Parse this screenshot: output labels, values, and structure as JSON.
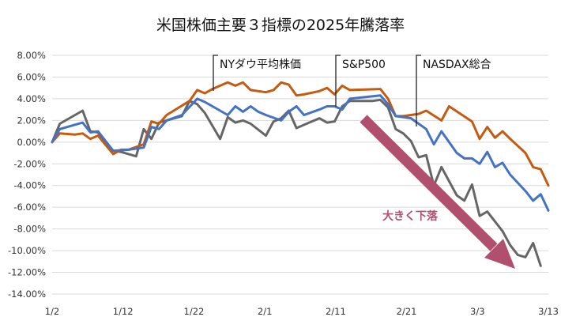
{
  "chart_data": {
    "type": "line",
    "title": "米国株価主要３指標の2025年騰落率",
    "x_tick_labels": [
      "1/2",
      "1/12",
      "1/22",
      "2/1",
      "2/11",
      "2/21",
      "3/3",
      "3/13"
    ],
    "ylim": [
      -14,
      8
    ],
    "y_ticks": [
      8,
      6,
      4,
      2,
      0,
      -2,
      -4,
      -6,
      -8,
      -10,
      -12,
      -14
    ],
    "y_tick_labels": [
      "8.00%",
      "6.00%",
      "4.00%",
      "2.00%",
      "0.00%",
      "-2.00%",
      "-4.00%",
      "-6.00%",
      "-8.00%",
      "-10.00%",
      "-12.00%",
      "-14.00%"
    ],
    "grid": "horizontal",
    "annotation": "大きく下落",
    "annotation_color": "#b0506e",
    "series": [
      {
        "name": "NYダウ平均株価",
        "color": "#c55a11",
        "points": [
          [
            0,
            0.0
          ],
          [
            1,
            0.8
          ],
          [
            3,
            0.7
          ],
          [
            4,
            0.8
          ],
          [
            5,
            0.3
          ],
          [
            6,
            0.6
          ],
          [
            8,
            -1.1
          ],
          [
            9,
            -0.7
          ],
          [
            10,
            -0.7
          ],
          [
            12,
            -0.2
          ],
          [
            13,
            1.9
          ],
          [
            14,
            1.7
          ],
          [
            15,
            2.5
          ],
          [
            18,
            3.8
          ],
          [
            19,
            4.8
          ],
          [
            20,
            4.5
          ],
          [
            21,
            4.9
          ],
          [
            22,
            5.2
          ],
          [
            23,
            5.5
          ],
          [
            24,
            5.2
          ],
          [
            25,
            5.5
          ],
          [
            26,
            4.8
          ],
          [
            27,
            4.7
          ],
          [
            28,
            4.6
          ],
          [
            29,
            4.8
          ],
          [
            30,
            5.5
          ],
          [
            31,
            5.3
          ],
          [
            32,
            4.3
          ],
          [
            33,
            4.4
          ],
          [
            35,
            4.7
          ],
          [
            36,
            5.0
          ],
          [
            37,
            4.4
          ],
          [
            38,
            5.2
          ],
          [
            39,
            4.8
          ],
          [
            43,
            4.9
          ],
          [
            44,
            4.0
          ],
          [
            45,
            2.4
          ],
          [
            46,
            2.4
          ],
          [
            48,
            2.6
          ],
          [
            49,
            2.9
          ],
          [
            51,
            2.0
          ],
          [
            52,
            3.3
          ],
          [
            55,
            1.9
          ],
          [
            56,
            0.3
          ],
          [
            57,
            1.4
          ],
          [
            58,
            0.4
          ],
          [
            59,
            1.0
          ],
          [
            60,
            0.3
          ],
          [
            62,
            -1.0
          ],
          [
            63,
            -2.3
          ],
          [
            64,
            -2.5
          ],
          [
            65,
            -4.0
          ]
        ]
      },
      {
        "name": "S&P500",
        "color": "#4472c4",
        "points": [
          [
            0,
            0.0
          ],
          [
            1,
            1.2
          ],
          [
            4,
            1.8
          ],
          [
            5,
            0.9
          ],
          [
            6,
            1.0
          ],
          [
            8,
            -0.8
          ],
          [
            10,
            -0.7
          ],
          [
            12,
            -0.5
          ],
          [
            13,
            1.4
          ],
          [
            14,
            1.2
          ],
          [
            15,
            2.0
          ],
          [
            17,
            2.5
          ],
          [
            19,
            4.0
          ],
          [
            20,
            3.7
          ],
          [
            23,
            2.5
          ],
          [
            24,
            3.3
          ],
          [
            25,
            2.8
          ],
          [
            26,
            3.3
          ],
          [
            27,
            2.8
          ],
          [
            28,
            2.5
          ],
          [
            30,
            2.0
          ],
          [
            31,
            2.8
          ],
          [
            32,
            3.3
          ],
          [
            33,
            2.5
          ],
          [
            35,
            3.0
          ],
          [
            36,
            3.3
          ],
          [
            37,
            3.3
          ],
          [
            38,
            3.0
          ],
          [
            39,
            4.0
          ],
          [
            43,
            4.3
          ],
          [
            44,
            3.5
          ],
          [
            45,
            2.4
          ],
          [
            47,
            2.2
          ],
          [
            48,
            1.7
          ],
          [
            49,
            1.2
          ],
          [
            50,
            -0.2
          ],
          [
            51,
            1.0
          ],
          [
            53,
            -1.0
          ],
          [
            54,
            -1.5
          ],
          [
            55,
            -1.5
          ],
          [
            56,
            -2.0
          ],
          [
            57,
            -0.9
          ],
          [
            58,
            -2.3
          ],
          [
            59,
            -1.9
          ],
          [
            60,
            -3.0
          ],
          [
            62,
            -4.5
          ],
          [
            63,
            -5.4
          ],
          [
            64,
            -4.8
          ],
          [
            65,
            -6.3
          ]
        ]
      },
      {
        "name": "NASDAX総合",
        "color": "#666666",
        "points": [
          [
            0,
            0.0
          ],
          [
            1,
            1.7
          ],
          [
            4,
            2.9
          ],
          [
            5,
            1.0
          ],
          [
            6,
            0.9
          ],
          [
            8,
            -0.8
          ],
          [
            9,
            -0.9
          ],
          [
            11,
            -1.3
          ],
          [
            12,
            1.2
          ],
          [
            13,
            0.3
          ],
          [
            14,
            1.8
          ],
          [
            17,
            2.4
          ],
          [
            18,
            3.8
          ],
          [
            19,
            3.5
          ],
          [
            20,
            2.7
          ],
          [
            22,
            0.3
          ],
          [
            23,
            2.3
          ],
          [
            24,
            1.8
          ],
          [
            25,
            2.0
          ],
          [
            26,
            1.7
          ],
          [
            28,
            0.6
          ],
          [
            29,
            1.9
          ],
          [
            30,
            2.2
          ],
          [
            31,
            2.9
          ],
          [
            32,
            1.3
          ],
          [
            35,
            2.2
          ],
          [
            36,
            1.8
          ],
          [
            37,
            1.9
          ],
          [
            38,
            3.3
          ],
          [
            39,
            3.8
          ],
          [
            42,
            3.8
          ],
          [
            43,
            3.9
          ],
          [
            44,
            3.2
          ],
          [
            45,
            1.2
          ],
          [
            46,
            0.8
          ],
          [
            47,
            0.1
          ],
          [
            48,
            -1.4
          ],
          [
            49,
            -1.2
          ],
          [
            50,
            -4.0
          ],
          [
            51,
            -2.3
          ],
          [
            53,
            -4.9
          ],
          [
            54,
            -5.4
          ],
          [
            55,
            -3.9
          ],
          [
            56,
            -6.8
          ],
          [
            57,
            -6.4
          ],
          [
            59,
            -8.2
          ],
          [
            60,
            -9.5
          ],
          [
            61,
            -10.4
          ],
          [
            62,
            -10.6
          ],
          [
            63,
            -9.3
          ],
          [
            64,
            -11.4
          ]
        ]
      }
    ]
  }
}
